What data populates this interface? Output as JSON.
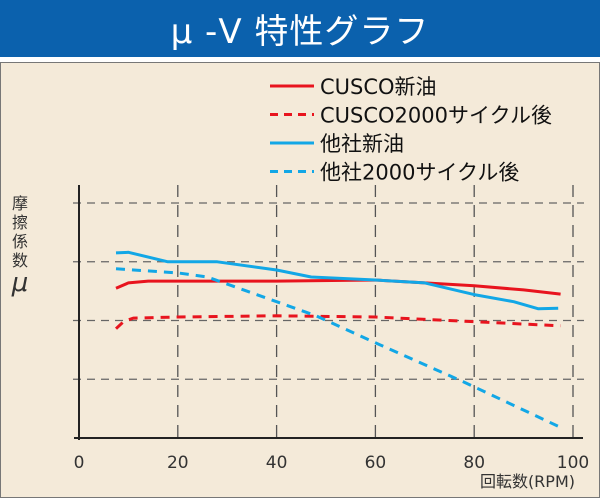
{
  "title": "μ -V 特性グラフ",
  "chart_data": {
    "type": "line",
    "title": "μ -V 特性グラフ",
    "xlabel": "回転数(RPM)",
    "ylabel": [
      "摩",
      "擦",
      "係",
      "数",
      "μ"
    ],
    "xlim": [
      0,
      100
    ],
    "ylim": [
      0,
      4
    ],
    "xticks": [
      "0",
      "20",
      "40",
      "60",
      "80",
      "100"
    ],
    "yticks_labels": false,
    "grid": true,
    "legend_position": "top-right",
    "series": [
      {
        "name": "CUSCO新油",
        "color": "#e8141e",
        "dash": false,
        "x": [
          7.5,
          10,
          14,
          40,
          60,
          70,
          80,
          90,
          97.5
        ],
        "y": [
          2.55,
          2.64,
          2.67,
          2.67,
          2.69,
          2.64,
          2.59,
          2.52,
          2.45
        ]
      },
      {
        "name": "CUSCO2000サイクル後",
        "color": "#e8141e",
        "dash": true,
        "x": [
          7.5,
          9,
          11,
          20,
          40,
          60,
          80,
          97.5
        ],
        "y": [
          1.86,
          1.98,
          2.04,
          2.06,
          2.08,
          2.06,
          1.98,
          1.91
        ]
      },
      {
        "name": "他社新油",
        "color": "#12a7e6",
        "dash": false,
        "x": [
          7.5,
          10,
          18,
          28,
          40,
          47,
          60,
          70,
          80,
          88,
          93,
          97
        ],
        "y": [
          3.15,
          3.16,
          3.0,
          3.0,
          2.86,
          2.74,
          2.69,
          2.64,
          2.44,
          2.32,
          2.2,
          2.21
        ]
      },
      {
        "name": "他社2000サイクル後",
        "color": "#12a7e6",
        "dash": true,
        "x": [
          7.5,
          20,
          26,
          40,
          48,
          60,
          78,
          97
        ],
        "y": [
          2.88,
          2.81,
          2.74,
          2.32,
          2.08,
          1.62,
          0.95,
          0.2
        ]
      }
    ]
  }
}
